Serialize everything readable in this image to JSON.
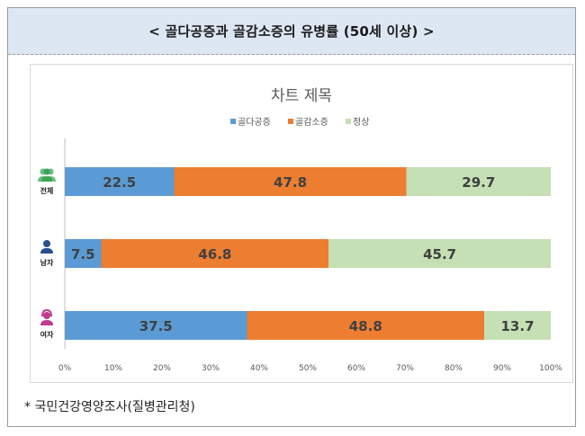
{
  "header": {
    "title": "< 골다공증과 골감소증의 유병률 (50세 이상) >"
  },
  "footnote": "* 국민건강영양조사(질병관리청)",
  "colors": {
    "osteoporosis": "#5b9bd5",
    "osteopenia": "#ed7d31",
    "normal": "#c5e0b4",
    "icon_all": "#3aa655",
    "icon_male": "#2a4f8f",
    "icon_female": "#c0398f"
  },
  "chart_data": {
    "type": "bar",
    "orientation": "horizontal",
    "stacked": true,
    "title": "차트 제목",
    "legend_position": "top",
    "categories": [
      "전체",
      "남자",
      "여자"
    ],
    "category_icons": [
      "people-icon",
      "man-icon",
      "woman-icon"
    ],
    "series": [
      {
        "name": "골다공증",
        "values": [
          22.5,
          7.5,
          37.5
        ]
      },
      {
        "name": "골감소증",
        "values": [
          47.8,
          46.8,
          48.8
        ]
      },
      {
        "name": "정상",
        "values": [
          29.7,
          45.7,
          13.7
        ]
      }
    ],
    "xlim": [
      0,
      100
    ],
    "xticks": [
      "0%",
      "10%",
      "20%",
      "30%",
      "40%",
      "50%",
      "60%",
      "70%",
      "80%",
      "90%",
      "100%"
    ],
    "grid": false
  }
}
